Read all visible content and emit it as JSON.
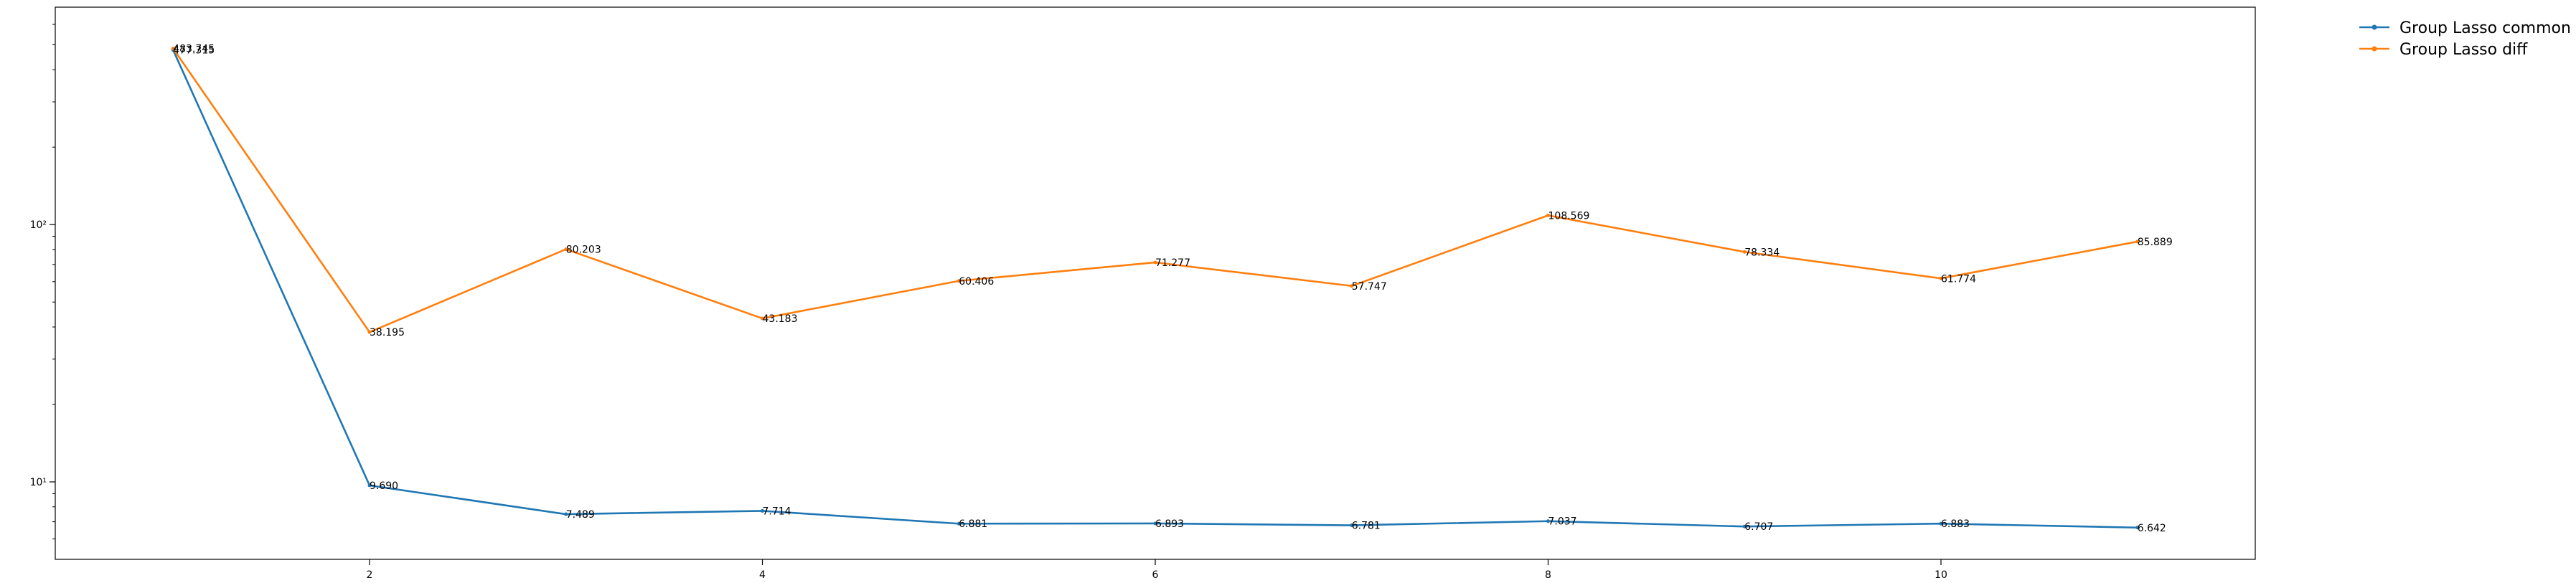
{
  "chart_data": {
    "type": "line",
    "title": "",
    "xlabel": "",
    "ylabel": "",
    "xscale": "linear",
    "yscale": "log",
    "xlim": [
      0.4,
      11.6
    ],
    "ylim": [
      5.0,
      700
    ],
    "grid": false,
    "legend_position": "outside-top-right",
    "x": [
      1,
      2,
      3,
      4,
      5,
      6,
      7,
      8,
      9,
      10,
      11
    ],
    "x_ticks": [
      2,
      4,
      6,
      8,
      10
    ],
    "x_tick_labels": [
      "2",
      "4",
      "6",
      "8",
      "10"
    ],
    "y_ticks": [
      10,
      100
    ],
    "y_tick_labels": [
      "10¹",
      "10²"
    ],
    "series": [
      {
        "name": "Group Lasso common",
        "color": "#1f77b4",
        "marker": "point",
        "values": [
          477.315,
          9.69,
          7.489,
          7.714,
          6.881,
          6.893,
          6.781,
          7.037,
          6.707,
          6.883,
          6.642
        ],
        "labels": [
          "477.315",
          "9.690",
          "7.489",
          "7.714",
          "6.881",
          "6.893",
          "6.781",
          "7.037",
          "6.707",
          "6.883",
          "6.642"
        ]
      },
      {
        "name": "Group Lasso diff",
        "color": "#ff7f0e",
        "marker": "point",
        "values": [
          483.745,
          38.195,
          80.203,
          43.183,
          60.406,
          71.277,
          57.747,
          108.569,
          78.334,
          61.774,
          85.889
        ],
        "labels": [
          "483.745",
          "38.195",
          "80.203",
          "43.183",
          "60.406",
          "71.277",
          "57.747",
          "108.569",
          "78.334",
          "61.774",
          "85.889"
        ]
      }
    ]
  }
}
